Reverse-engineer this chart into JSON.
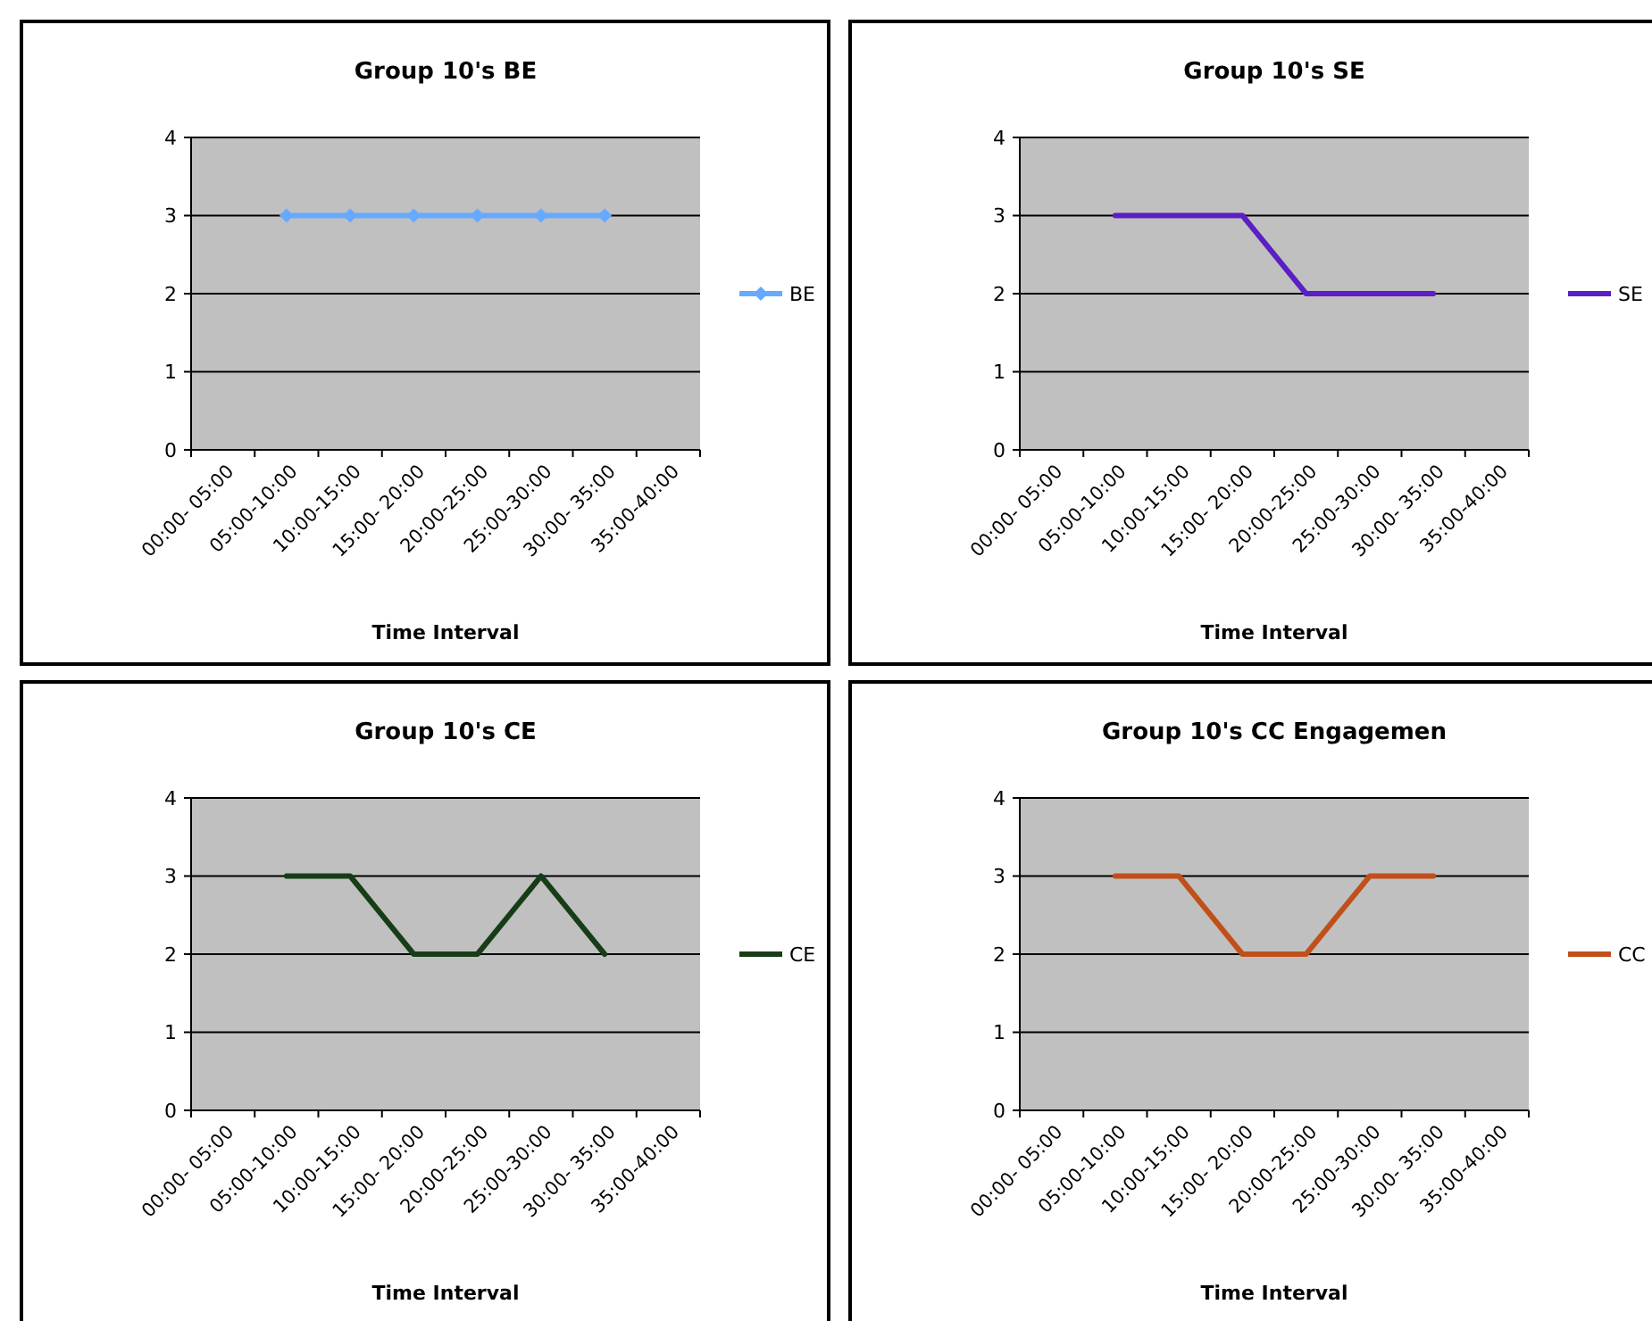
{
  "chart_data": [
    {
      "type": "line",
      "title": "Group 10's BE",
      "xlabel": "Time Interval",
      "categories": [
        "00:00- 05:00",
        "05:00-10:00",
        "10:00-15:00",
        "15:00- 20:00",
        "20:00-25:00",
        "25:00-30:00",
        "30:00- 35:00",
        "35:00-40:00"
      ],
      "ylim": [
        0,
        4
      ],
      "yticks": [
        0,
        1,
        2,
        3,
        4
      ],
      "grid": "y",
      "legend": "right",
      "marker": "diamond",
      "series": [
        {
          "name": "BE",
          "color": "#66aaff",
          "values": [
            null,
            3,
            3,
            3,
            3,
            3,
            3,
            null
          ]
        }
      ]
    },
    {
      "type": "line",
      "title": "Group 10's SE",
      "xlabel": "Time Interval",
      "categories": [
        "00:00- 05:00",
        "05:00-10:00",
        "10:00-15:00",
        "15:00- 20:00",
        "20:00-25:00",
        "25:00-30:00",
        "30:00- 35:00",
        "35:00-40:00"
      ],
      "ylim": [
        0,
        4
      ],
      "yticks": [
        0,
        1,
        2,
        3,
        4
      ],
      "grid": "y",
      "legend": "right",
      "marker": "none",
      "series": [
        {
          "name": "SE",
          "color": "#5b1fc4",
          "values": [
            null,
            3,
            3,
            3,
            2,
            2,
            2,
            null
          ]
        }
      ]
    },
    {
      "type": "line",
      "title": "Group 10's CE",
      "xlabel": "Time Interval",
      "categories": [
        "00:00- 05:00",
        "05:00-10:00",
        "10:00-15:00",
        "15:00- 20:00",
        "20:00-25:00",
        "25:00-30:00",
        "30:00- 35:00",
        "35:00-40:00"
      ],
      "ylim": [
        0,
        4
      ],
      "yticks": [
        0,
        1,
        2,
        3,
        4
      ],
      "grid": "y",
      "legend": "right",
      "marker": "none",
      "series": [
        {
          "name": "CE",
          "color": "#173d17",
          "values": [
            null,
            3,
            3,
            2,
            2,
            3,
            2,
            null
          ]
        }
      ]
    },
    {
      "type": "line",
      "title": "Group 10's CC Engagemen",
      "xlabel": "Time Interval",
      "categories": [
        "00:00- 05:00",
        "05:00-10:00",
        "10:00-15:00",
        "15:00- 20:00",
        "20:00-25:00",
        "25:00-30:00",
        "30:00- 35:00",
        "35:00-40:00"
      ],
      "ylim": [
        0,
        4
      ],
      "yticks": [
        0,
        1,
        2,
        3,
        4
      ],
      "grid": "y",
      "legend": "right",
      "marker": "none",
      "series": [
        {
          "name": "CC",
          "color": "#c0501a",
          "values": [
            null,
            3,
            3,
            2,
            2,
            3,
            3,
            null
          ]
        }
      ]
    }
  ]
}
